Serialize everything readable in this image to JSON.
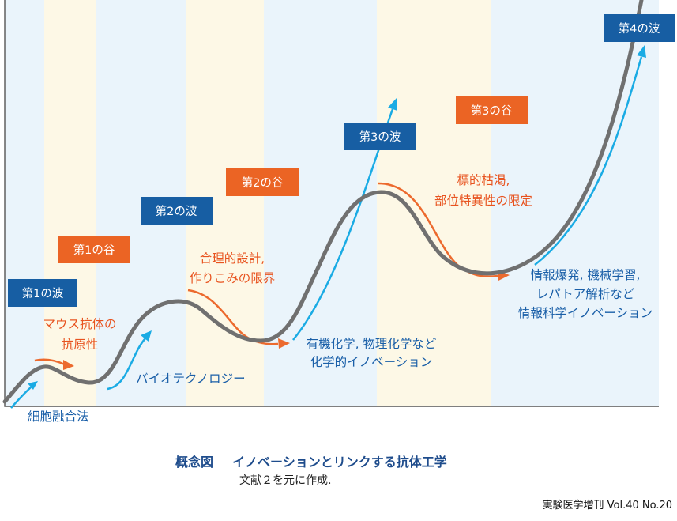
{
  "colors": {
    "wave": "#175ea3",
    "valley": "#eb6424",
    "curve": "#707070",
    "arrow_blue": "#1aabe4",
    "arrow_orange": "#ec6a2e"
  },
  "boxes": {
    "wave1": "第1の波",
    "valley1": "第1の谷",
    "wave2": "第2の波",
    "valley2": "第2の谷",
    "wave3": "第3の波",
    "valley3": "第3の谷",
    "wave4": "第4の波"
  },
  "labels": {
    "cell_fusion": "細胞融合法",
    "mouse_line1": "マウス抗体の",
    "mouse_line2": "抗原性",
    "biotech": "バイオテクノロジー",
    "rational_line1": "合理的設計,",
    "rational_line2": "作りこみの限界",
    "organic_line1": "有機化学, 物理化学など",
    "organic_line2": "化学的イノベーション",
    "target_line1": "標的枯渇,",
    "target_line2": "部位特異性の限定",
    "info_line1": "情報爆発, 機械学習,",
    "info_line2": "レパトア解析など",
    "info_line3": "情報科学イノベーション"
  },
  "caption": {
    "title_prefix": "概念図",
    "title": "イノベーションとリンクする抗体工学",
    "subtitle": "文献２を元に作成."
  },
  "source": "実験医学増刊 Vol.40 No.20"
}
